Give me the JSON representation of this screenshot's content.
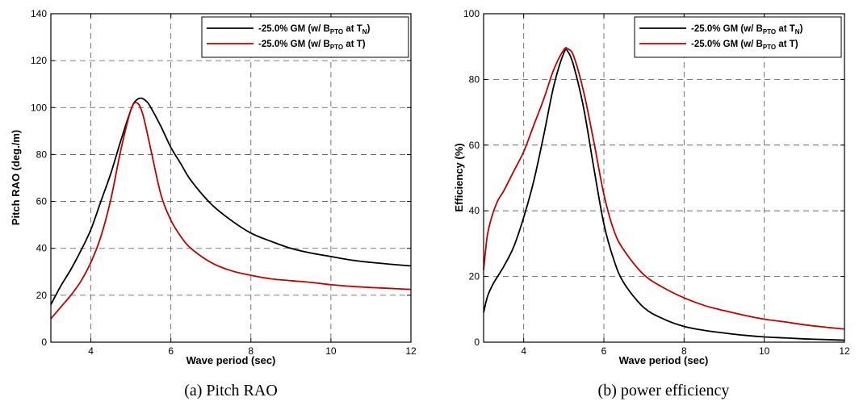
{
  "chart_data": [
    {
      "type": "line",
      "title": "",
      "caption": "(a)  Pitch  RAO",
      "xlabel": "Wave period (sec)",
      "ylabel": "Pitch RAO (deg./m)",
      "xlim": [
        3,
        12
      ],
      "ylim": [
        0,
        140
      ],
      "xticks": [
        4,
        6,
        8,
        10,
        12
      ],
      "yticks": [
        0,
        20,
        40,
        60,
        80,
        100,
        120,
        140
      ],
      "grid": true,
      "legend_position": "top-right",
      "series": [
        {
          "name": "-25.0% GM (w/ B_PTO at T_N)",
          "legend": {
            "pre": "-25.0% GM (w/ B",
            "sub1": "PTO",
            "mid": " at T",
            "sub2": "N",
            "post": ")"
          },
          "color": "#000000",
          "x": [
            3.0,
            3.25,
            3.5,
            3.75,
            4.0,
            4.25,
            4.5,
            4.75,
            5.0,
            5.1,
            5.25,
            5.4,
            5.5,
            5.75,
            6.0,
            6.25,
            6.5,
            7.0,
            7.5,
            8.0,
            8.5,
            9.0,
            9.5,
            10.0,
            10.5,
            11.0,
            11.5,
            12.0
          ],
          "y": [
            16,
            24,
            31,
            39,
            48,
            60,
            72,
            86,
            99,
            102.5,
            104,
            102.5,
            100,
            92,
            83,
            76,
            69,
            59,
            52,
            46.5,
            43,
            40,
            38,
            36.5,
            35,
            34,
            33.2,
            32.5
          ]
        },
        {
          "name": "-25.0% GM (w/ B_PTO at T)",
          "legend": {
            "pre": "-25.0% GM (w/ B",
            "sub1": "PTO",
            "mid": " at T",
            "sub2": "",
            "post": ")"
          },
          "color": "#c00000",
          "x": [
            3.0,
            3.25,
            3.5,
            3.75,
            4.0,
            4.25,
            4.5,
            4.75,
            5.0,
            5.15,
            5.3,
            5.5,
            5.75,
            6.0,
            6.25,
            6.5,
            7.0,
            7.5,
            8.0,
            8.5,
            9.0,
            9.5,
            10.0,
            10.5,
            11.0,
            11.5,
            12.0
          ],
          "y": [
            10,
            15,
            20,
            26,
            34,
            45,
            61,
            82,
            99,
            102,
            97,
            82,
            63,
            52,
            45,
            40,
            34,
            30.5,
            28.5,
            27,
            26.2,
            25.5,
            24.5,
            23.8,
            23.3,
            22.9,
            22.5
          ]
        }
      ]
    },
    {
      "type": "line",
      "title": "",
      "caption": "(b)  power  efficiency",
      "xlabel": "Wave period (sec)",
      "ylabel": "Efficiency (%)",
      "xlim": [
        3,
        12
      ],
      "ylim": [
        0,
        100
      ],
      "xticks": [
        4,
        6,
        8,
        10,
        12
      ],
      "yticks": [
        0,
        20,
        40,
        60,
        80,
        100
      ],
      "grid": true,
      "legend_position": "top-right",
      "series": [
        {
          "name": "-25.0% GM (w/ B_PTO at T_N)",
          "legend": {
            "pre": "-25.0% GM (w/ B",
            "sub1": "PTO",
            "mid": " at T",
            "sub2": "N",
            "post": ")"
          },
          "color": "#000000",
          "x": [
            3.0,
            3.1,
            3.25,
            3.5,
            3.75,
            4.0,
            4.25,
            4.5,
            4.75,
            5.0,
            5.1,
            5.25,
            5.5,
            5.75,
            6.0,
            6.25,
            6.5,
            7.0,
            7.5,
            8.0,
            8.5,
            9.0,
            9.5,
            10.0,
            10.5,
            11.0,
            11.5,
            12.0
          ],
          "y": [
            9,
            14,
            18,
            23,
            29,
            38,
            49,
            63,
            78,
            88,
            88.5,
            84,
            71,
            53,
            36,
            25,
            18,
            10.5,
            7,
            4.8,
            3.6,
            2.8,
            2.1,
            1.6,
            1.3,
            1.0,
            0.8,
            0.6
          ]
        },
        {
          "name": "-25.0% GM (w/ B_PTO at T)",
          "legend": {
            "pre": "-25.0% GM (w/ B",
            "sub1": "PTO",
            "mid": " at T",
            "sub2": "",
            "post": ")"
          },
          "color": "#c00000",
          "x": [
            3.0,
            3.05,
            3.1,
            3.2,
            3.35,
            3.5,
            3.75,
            4.0,
            4.25,
            4.5,
            4.75,
            5.0,
            5.1,
            5.25,
            5.5,
            5.75,
            6.0,
            6.25,
            6.5,
            7.0,
            7.5,
            8.0,
            8.5,
            9.0,
            9.5,
            10.0,
            10.5,
            11.0,
            11.5,
            12.0
          ],
          "y": [
            22,
            28,
            33,
            38,
            43,
            46,
            52,
            58,
            66,
            74,
            83,
            89,
            89.3,
            87,
            76,
            61,
            45,
            34,
            28,
            20.5,
            16.5,
            13.5,
            11.2,
            9.6,
            8.2,
            7.0,
            6.2,
            5.3,
            4.6,
            4.0
          ]
        }
      ]
    }
  ]
}
